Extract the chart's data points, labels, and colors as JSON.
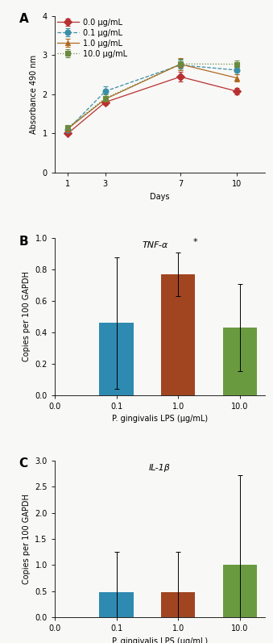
{
  "panel_A": {
    "days": [
      1,
      3,
      7,
      10
    ],
    "series": [
      {
        "label": "0.0 μg/mL",
        "values": [
          1.0,
          1.8,
          2.45,
          2.08
        ],
        "errors": [
          0.04,
          0.07,
          0.12,
          0.09
        ],
        "color": "#b83030",
        "marker": "D",
        "linestyle": "-",
        "markersize": 5
      },
      {
        "label": "0.1 μg/mL",
        "values": [
          1.1,
          2.08,
          2.75,
          2.62
        ],
        "errors": [
          0.04,
          0.12,
          0.14,
          0.1
        ],
        "color": "#3a8fa8",
        "marker": "o",
        "linestyle": "--",
        "markersize": 5
      },
      {
        "label": "1.0 μg/mL",
        "values": [
          1.12,
          1.88,
          2.77,
          2.42
        ],
        "errors": [
          0.05,
          0.08,
          0.15,
          0.1
        ],
        "color": "#b06820",
        "marker": "^",
        "linestyle": "-",
        "markersize": 5
      },
      {
        "label": "10.0 μg/mL",
        "values": [
          1.15,
          1.9,
          2.78,
          2.77
        ],
        "errors": [
          0.05,
          0.09,
          0.12,
          0.1
        ],
        "color": "#6a8a40",
        "marker": "s",
        "linestyle": ":",
        "markersize": 5
      }
    ],
    "xlabel": "Days",
    "ylabel": "Absorbance 490 nm",
    "ylim": [
      0,
      4
    ],
    "yticks": [
      0,
      1,
      2,
      3,
      4
    ],
    "xticks": [
      1,
      3,
      7,
      10
    ]
  },
  "panel_B": {
    "categories": [
      "0.0",
      "0.1",
      "1.0",
      "10.0"
    ],
    "values": [
      0.0,
      0.46,
      0.77,
      0.43
    ],
    "errors": [
      0.0,
      0.42,
      0.14,
      0.28
    ],
    "colors": [
      "none",
      "#2e8ab0",
      "#a04520",
      "#6a9a40"
    ],
    "title": "TNF-α",
    "xlabel": "P. gingivalis LPS (μg/mL)",
    "ylabel": "Copies per 100 GAPDH",
    "ylim": [
      0,
      1.0
    ],
    "yticks": [
      0.0,
      0.2,
      0.4,
      0.6,
      0.8,
      1.0
    ],
    "star_bar": 2,
    "star_text": "*"
  },
  "panel_C": {
    "categories": [
      "0.0",
      "0.1",
      "1.0",
      "10.0"
    ],
    "values": [
      0.0,
      0.48,
      0.48,
      1.0
    ],
    "errors": [
      0.0,
      0.78,
      0.78,
      1.72
    ],
    "colors": [
      "none",
      "#2e8ab0",
      "#a04520",
      "#6a9a40"
    ],
    "title": "IL-1β",
    "xlabel": "P. gingivalis LPS (μg/mL)",
    "ylabel": "Copies per 100 GAPDH",
    "ylim": [
      0,
      3.0
    ],
    "yticks": [
      0.0,
      0.5,
      1.0,
      1.5,
      2.0,
      2.5,
      3.0
    ]
  },
  "bg_color": "#f8f8f6",
  "panel_label_fontsize": 11,
  "axis_fontsize": 7,
  "tick_fontsize": 7,
  "legend_fontsize": 7,
  "title_fontsize": 8
}
